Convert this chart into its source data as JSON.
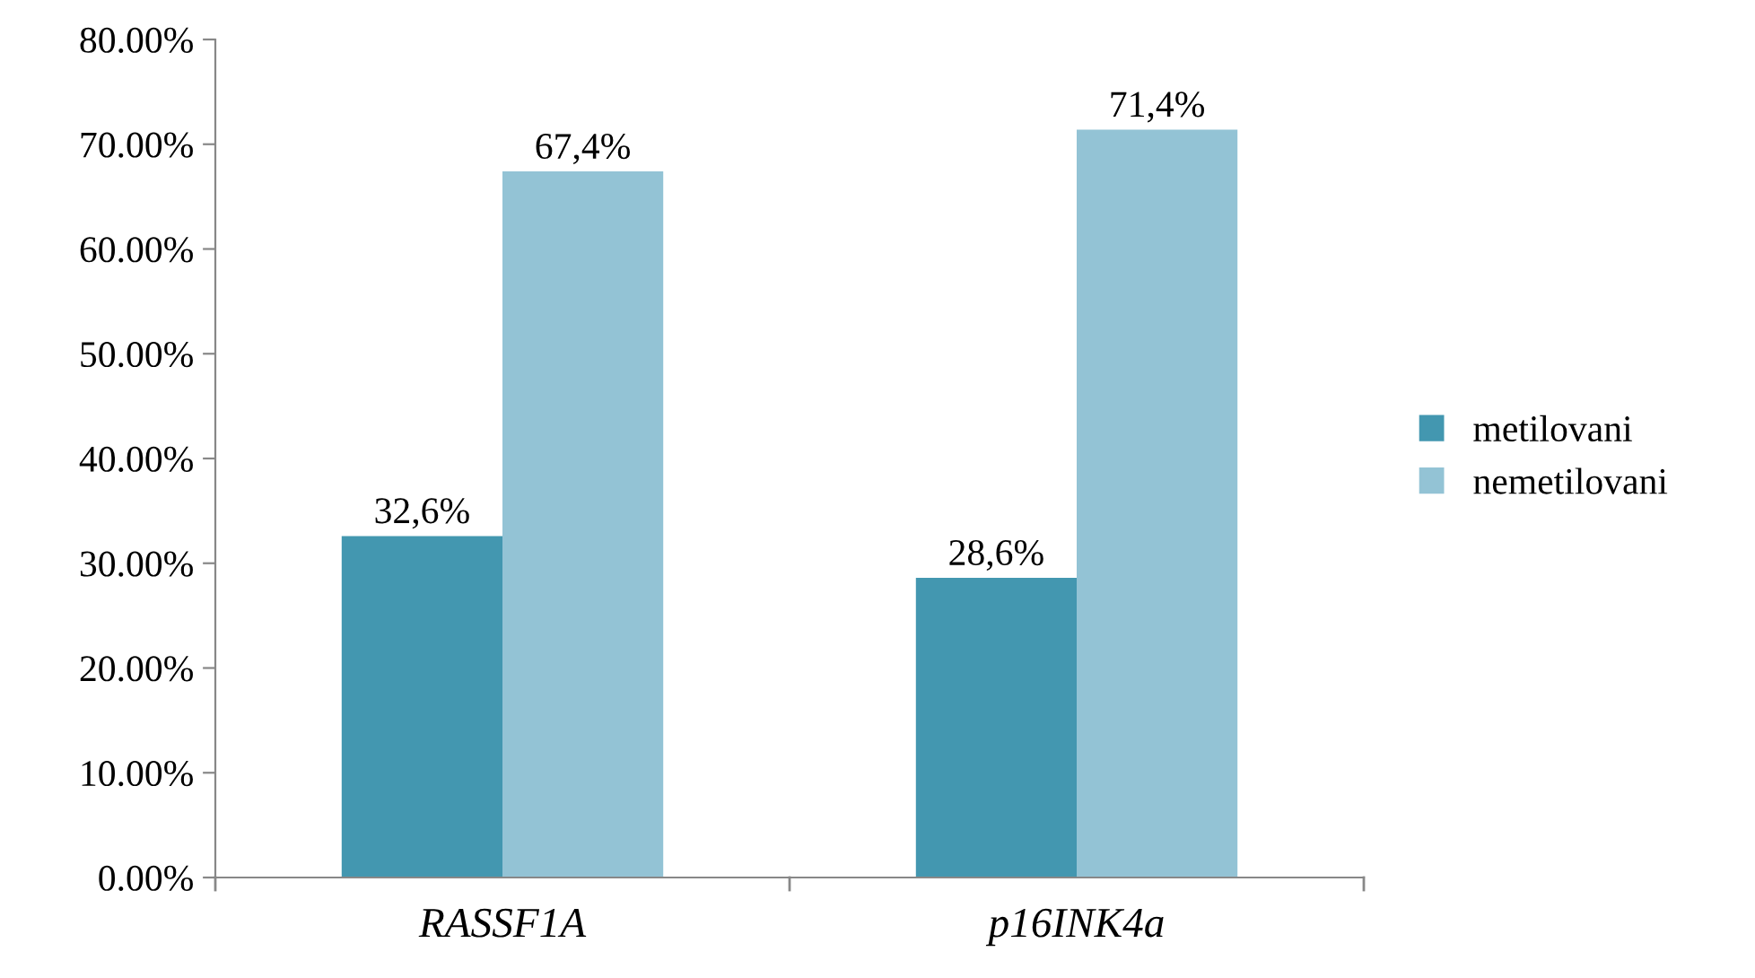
{
  "chart_data": {
    "type": "bar",
    "categories": [
      "RASSF1A",
      "p16INK4a"
    ],
    "series": [
      {
        "name": "metilovani",
        "color": "#4397b0",
        "values": [
          32.6,
          28.6
        ],
        "value_labels": [
          "32,6%",
          "28,6%"
        ]
      },
      {
        "name": "nemetilovani",
        "color": "#93c3d5",
        "values": [
          67.4,
          71.4
        ],
        "value_labels": [
          "67,4%",
          "71,4%"
        ]
      }
    ],
    "ylim": [
      0,
      80
    ],
    "yticks": [
      {
        "value": 0,
        "label": "0.00%"
      },
      {
        "value": 10,
        "label": "10.00%"
      },
      {
        "value": 20,
        "label": "20.00%"
      },
      {
        "value": 30,
        "label": "30.00%"
      },
      {
        "value": 40,
        "label": "40.00%"
      },
      {
        "value": 50,
        "label": "50.00%"
      },
      {
        "value": 60,
        "label": "60.00%"
      },
      {
        "value": 70,
        "label": "70.00%"
      },
      {
        "value": 80,
        "label": "80.00%"
      }
    ],
    "grid": false,
    "legend": "right"
  }
}
